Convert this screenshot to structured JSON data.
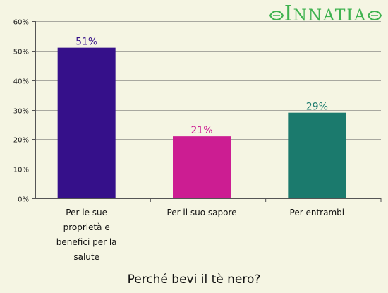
{
  "brand": {
    "logo_text": "INNATIA",
    "logo_initial": "I",
    "logo_rest": "NNATIA",
    "color": "#3fb24f"
  },
  "chart_data": {
    "type": "bar",
    "title": "Perché bevi il tè nero?",
    "categories": [
      [
        "Per le sue",
        "proprietà e",
        "benefici per la",
        "salute"
      ],
      [
        "Per il suo sapore"
      ],
      [
        "Per entrambi"
      ]
    ],
    "values": [
      51,
      21,
      29
    ],
    "value_labels": [
      "51%",
      "21%",
      "29%"
    ],
    "colors": [
      "#35108a",
      "#cc1d92",
      "#1b7a6d"
    ],
    "ylim": [
      0,
      60
    ],
    "yticks": [
      0,
      10,
      20,
      30,
      40,
      50,
      60
    ],
    "ytick_labels": [
      "0%",
      "10%",
      "20%",
      "30%",
      "40%",
      "50%",
      "60%"
    ],
    "grid": true,
    "legend": "none"
  }
}
